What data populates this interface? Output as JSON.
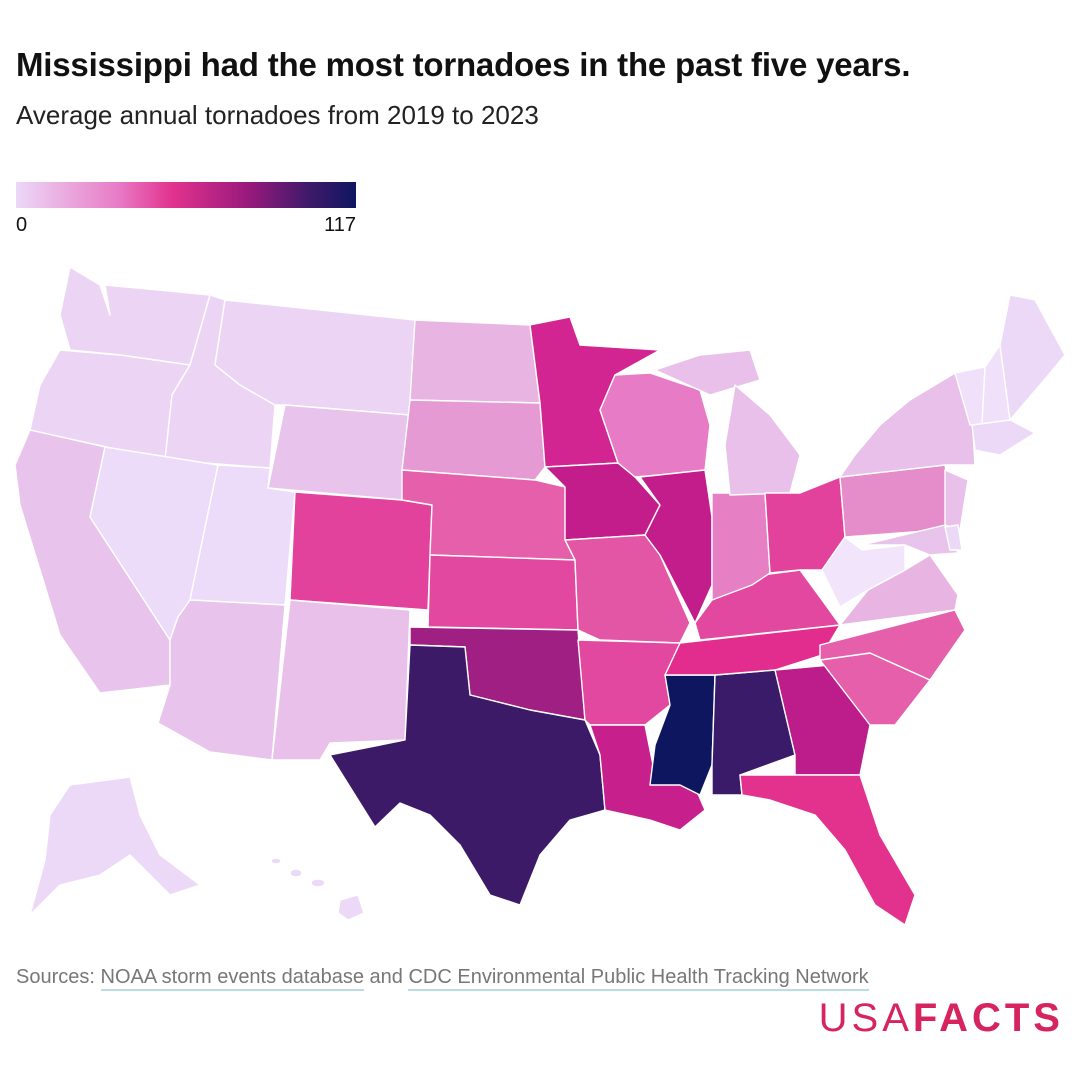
{
  "header": {
    "title": "Mississippi had the most tornadoes in the past five years.",
    "subtitle": "Average annual tornadoes from 2019 to 2023"
  },
  "legend": {
    "min_label": "0",
    "max_label": "117"
  },
  "footer": {
    "sources_prefix": "Sources:",
    "source_1": "NOAA storm events database",
    "sources_join": "and",
    "source_2": "CDC Environmental Public Health Tracking Network",
    "brand_part_1": "USA",
    "brand_part_2": "FACTS"
  },
  "colors": {
    "scale": [
      "#ecd8f7",
      "#e87bc6",
      "#e2328e",
      "#9a1a7d",
      "#3f1a6a",
      "#0f1660"
    ],
    "brand": "#d6245f",
    "state_border": "#ffffff"
  },
  "chart_data": {
    "type": "choropleth",
    "scale_range": [
      0,
      117
    ],
    "regions": [
      {
        "state": "WA",
        "color": "#ecd4f5"
      },
      {
        "state": "OR",
        "color": "#ecd4f5"
      },
      {
        "state": "CA",
        "color": "#e8c4ec"
      },
      {
        "state": "ID",
        "color": "#ecd4f5"
      },
      {
        "state": "NV",
        "color": "#eddcf9"
      },
      {
        "state": "UT",
        "color": "#eddcf9"
      },
      {
        "state": "AZ",
        "color": "#e8c4ec"
      },
      {
        "state": "MT",
        "color": "#ecd4f5"
      },
      {
        "state": "WY",
        "color": "#e8c4ec"
      },
      {
        "state": "CO",
        "color": "#e2429c"
      },
      {
        "state": "NM",
        "color": "#e8c0ea"
      },
      {
        "state": "ND",
        "color": "#e8b4e2"
      },
      {
        "state": "SD",
        "color": "#e59ad3"
      },
      {
        "state": "NE",
        "color": "#e65fab"
      },
      {
        "state": "KS",
        "color": "#e2489f"
      },
      {
        "state": "OK",
        "color": "#9f1f83"
      },
      {
        "state": "TX",
        "color": "#3c1a68"
      },
      {
        "state": "MN",
        "color": "#d32591"
      },
      {
        "state": "IA",
        "color": "#c21d8a"
      },
      {
        "state": "MO",
        "color": "#e256a5"
      },
      {
        "state": "AR",
        "color": "#e2489f"
      },
      {
        "state": "LA",
        "color": "#c71f8b"
      },
      {
        "state": "WI",
        "color": "#e87bc6"
      },
      {
        "state": "IL",
        "color": "#c21d8a"
      },
      {
        "state": "MS",
        "color": "#0f1660"
      },
      {
        "state": "AL",
        "color": "#3a1b69"
      },
      {
        "state": "TN",
        "color": "#e22d8f"
      },
      {
        "state": "KY",
        "color": "#e2489f"
      },
      {
        "state": "IN",
        "color": "#e67fc3"
      },
      {
        "state": "MI",
        "color": "#e8c0ea"
      },
      {
        "state": "OH",
        "color": "#e2429c"
      },
      {
        "state": "GA",
        "color": "#bd1c8b"
      },
      {
        "state": "FL",
        "color": "#e2328e"
      },
      {
        "state": "SC",
        "color": "#e65fab"
      },
      {
        "state": "NC",
        "color": "#e65fab"
      },
      {
        "state": "VA",
        "color": "#e8b4e2"
      },
      {
        "state": "WV",
        "color": "#f2e4fa"
      },
      {
        "state": "PA",
        "color": "#e58ccb"
      },
      {
        "state": "NY",
        "color": "#e8c0ea"
      },
      {
        "state": "ME",
        "color": "#ecd8f7"
      },
      {
        "state": "NH",
        "color": "#f0e0fa"
      },
      {
        "state": "VT",
        "color": "#f0e0fa"
      },
      {
        "state": "MA",
        "color": "#ecd8f7"
      },
      {
        "state": "NJ",
        "color": "#e8c0ea"
      },
      {
        "state": "MD",
        "color": "#e8c4ec"
      },
      {
        "state": "DE",
        "color": "#ecd8f7"
      },
      {
        "state": "AK",
        "color": "#ecd8f7"
      },
      {
        "state": "HI",
        "color": "#ecd8f7"
      }
    ]
  }
}
